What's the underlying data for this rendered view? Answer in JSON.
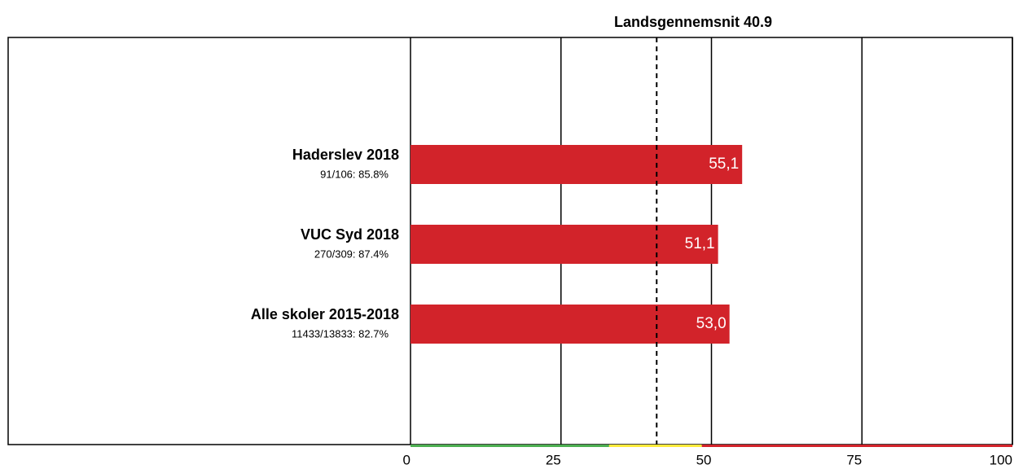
{
  "chart_data": {
    "type": "bar",
    "orientation": "horizontal",
    "categories": [
      "Haderslev 2018",
      "VUC Syd 2018",
      "Alle skoler 2015-2018"
    ],
    "sublabels": [
      "91/106: 85.8%",
      "270/309: 87.4%",
      "11433/13833: 82.7%"
    ],
    "values": [
      55.1,
      51.1,
      53.0
    ],
    "value_labels": [
      "55,1",
      "51,1",
      "53,0"
    ],
    "color": "#d2232a",
    "xlim": [
      0,
      100
    ],
    "xticks": [
      0,
      25,
      50,
      75,
      100
    ],
    "grid": true,
    "reference_line": {
      "value": 40.9,
      "label": "Landsgennemsnit 40.9"
    },
    "bands": [
      {
        "from": 0,
        "to": 33,
        "color": "#4caf50"
      },
      {
        "from": 33,
        "to": 48.4,
        "color": "#ffeb3b"
      },
      {
        "from": 48.4,
        "to": 100,
        "color": "#d2232a"
      }
    ]
  }
}
